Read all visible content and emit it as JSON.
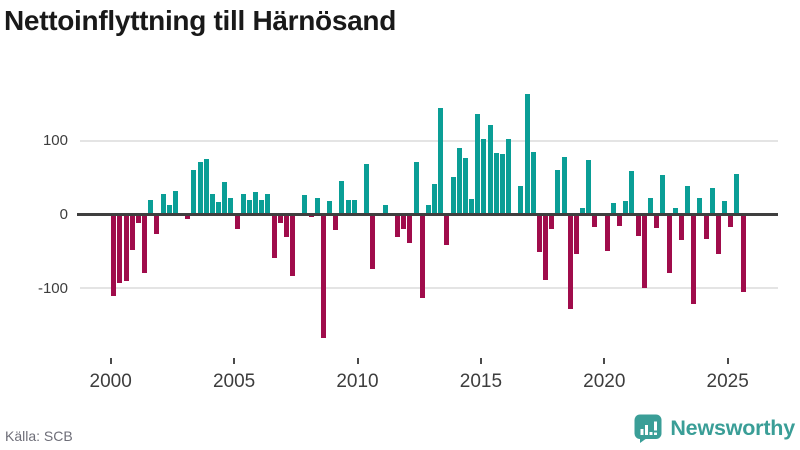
{
  "title": "Nettoinflyttning till Härnösand",
  "source": "Källa: SCB",
  "branding": {
    "name": "Newsworthy",
    "color": "#3a9e97",
    "icon": "bar-chart-speech-bubble-icon"
  },
  "colors": {
    "positive_bar": "#0a9e96",
    "negative_bar": "#a00c4b",
    "zero_axis": "#3f3f3f",
    "gridline": "#e4e4e4",
    "axis_text": "#3d3d3d"
  },
  "y_axis": {
    "labels": [
      "100",
      "0",
      "-100"
    ],
    "values": [
      100,
      0,
      -100
    ]
  },
  "x_axis": {
    "ticks": [
      "2000",
      "2005",
      "2010",
      "2015",
      "2020",
      "2025"
    ]
  },
  "chart_data": {
    "type": "bar",
    "title": "Nettoinflyttning till Härnösand",
    "xlabel": "",
    "ylabel": "",
    "frequency": "quarterly",
    "x_range": "2000Q1-2025Q3",
    "ylim": [
      -180,
      175
    ],
    "grid": "horizontal",
    "legend": "none",
    "series_by_year": [
      {
        "year": 2000,
        "values": [
          -110,
          -93,
          -90,
          -48
        ]
      },
      {
        "year": 2001,
        "values": [
          -12,
          -80,
          19,
          -26
        ]
      },
      {
        "year": 2002,
        "values": [
          28,
          13,
          32,
          0
        ]
      },
      {
        "year": 2003,
        "values": [
          -6,
          61,
          71,
          75
        ]
      },
      {
        "year": 2004,
        "values": [
          28,
          17,
          44,
          23
        ]
      },
      {
        "year": 2005,
        "values": [
          -19,
          28,
          20,
          31
        ]
      },
      {
        "year": 2006,
        "values": [
          19,
          28,
          -59,
          -12
        ]
      },
      {
        "year": 2007,
        "values": [
          -30,
          -83,
          0,
          27
        ]
      },
      {
        "year": 2008,
        "values": [
          -4,
          22,
          -168,
          18
        ]
      },
      {
        "year": 2009,
        "values": [
          -21,
          46,
          19,
          19
        ]
      },
      {
        "year": 2010,
        "values": [
          0,
          69,
          -74,
          0
        ]
      },
      {
        "year": 2011,
        "values": [
          13,
          0,
          -30,
          -20
        ]
      },
      {
        "year": 2012,
        "values": [
          -38,
          71,
          -113,
          13
        ]
      },
      {
        "year": 2013,
        "values": [
          42,
          144,
          -42,
          51
        ]
      },
      {
        "year": 2014,
        "values": [
          90,
          77,
          21,
          136
        ]
      },
      {
        "year": 2015,
        "values": [
          102,
          121,
          83,
          82
        ]
      },
      {
        "year": 2016,
        "values": [
          102,
          0,
          39,
          163
        ]
      },
      {
        "year": 2017,
        "values": [
          85,
          -51,
          -89,
          -19
        ]
      },
      {
        "year": 2018,
        "values": [
          61,
          78,
          -128,
          -53
        ]
      },
      {
        "year": 2019,
        "values": [
          9,
          74,
          -17,
          0
        ]
      },
      {
        "year": 2020,
        "values": [
          -49,
          15,
          -16,
          18
        ]
      },
      {
        "year": 2021,
        "values": [
          59,
          -29,
          -100,
          23
        ]
      },
      {
        "year": 2022,
        "values": [
          -18,
          54,
          -80,
          9
        ]
      },
      {
        "year": 2023,
        "values": [
          -34,
          38,
          -121,
          23
        ]
      },
      {
        "year": 2024,
        "values": [
          -33,
          36,
          -53,
          18
        ]
      },
      {
        "year": 2025,
        "values": [
          -17,
          55,
          -105
        ]
      }
    ]
  }
}
